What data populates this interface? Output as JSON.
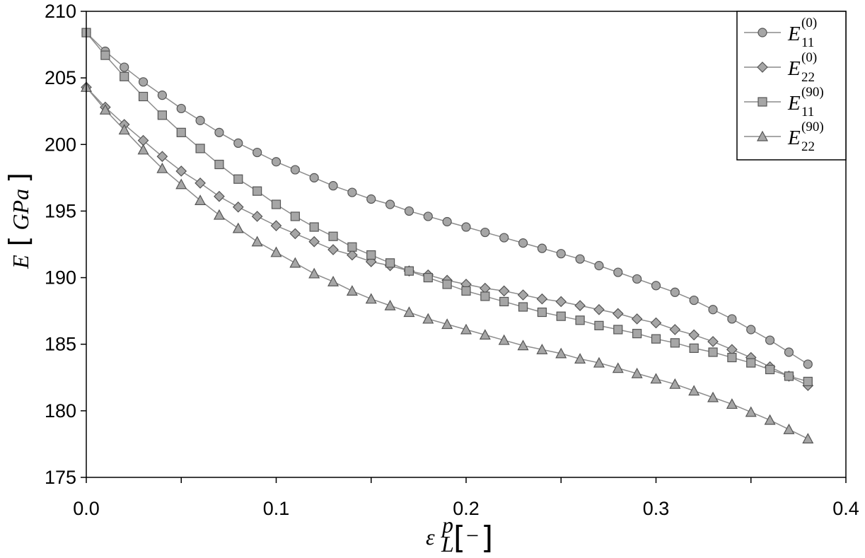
{
  "chart_data": {
    "type": "line",
    "xlabel": {
      "symbol": "ε",
      "sub": "L",
      "sup": "p",
      "unit": "−"
    },
    "ylabel": {
      "symbol": "E",
      "unit": "GPa"
    },
    "xlim": [
      0.0,
      0.4
    ],
    "ylim": [
      175,
      210
    ],
    "xticks": [
      "0.0",
      "0.1",
      "0.2",
      "0.3",
      "0.4"
    ],
    "yticks": [
      "175",
      "180",
      "185",
      "190",
      "195",
      "200",
      "205",
      "210"
    ],
    "grid": false,
    "legend_position": "top-right",
    "x": [
      0.0,
      0.01,
      0.02,
      0.03,
      0.04,
      0.05,
      0.06,
      0.07,
      0.08,
      0.09,
      0.1,
      0.11,
      0.12,
      0.13,
      0.14,
      0.15,
      0.16,
      0.17,
      0.18,
      0.19,
      0.2,
      0.21,
      0.22,
      0.23,
      0.24,
      0.25,
      0.26,
      0.27,
      0.28,
      0.29,
      0.3,
      0.31,
      0.32,
      0.33,
      0.34,
      0.35,
      0.36,
      0.37,
      0.38
    ],
    "series": [
      {
        "name": "E11(0)",
        "label": {
          "main": "E",
          "sub": "11",
          "sup": "(0)"
        },
        "marker": "circle",
        "values": [
          208.4,
          207.0,
          205.8,
          204.7,
          203.7,
          202.7,
          201.8,
          200.9,
          200.1,
          199.4,
          198.7,
          198.1,
          197.5,
          196.9,
          196.4,
          195.9,
          195.5,
          195.0,
          194.6,
          194.2,
          193.8,
          193.4,
          193.0,
          192.6,
          192.2,
          191.8,
          191.4,
          190.9,
          190.4,
          189.9,
          189.4,
          188.9,
          188.3,
          187.6,
          186.9,
          186.1,
          185.3,
          184.4,
          183.5
        ]
      },
      {
        "name": "E22(0)",
        "label": {
          "main": "E",
          "sub": "22",
          "sup": "(0)"
        },
        "marker": "diamond",
        "values": [
          204.3,
          202.8,
          201.5,
          200.3,
          199.1,
          198.0,
          197.1,
          196.1,
          195.3,
          194.6,
          193.9,
          193.3,
          192.7,
          192.1,
          191.7,
          191.2,
          190.9,
          190.5,
          190.2,
          189.8,
          189.5,
          189.2,
          189.0,
          188.7,
          188.4,
          188.2,
          187.9,
          187.6,
          187.3,
          186.9,
          186.6,
          186.1,
          185.7,
          185.2,
          184.6,
          184.0,
          183.3,
          182.6,
          181.9
        ]
      },
      {
        "name": "E11(90)",
        "label": {
          "main": "E",
          "sub": "11",
          "sup": "(90)"
        },
        "marker": "square",
        "values": [
          208.4,
          206.7,
          205.1,
          203.6,
          202.2,
          200.9,
          199.7,
          198.5,
          197.4,
          196.5,
          195.5,
          194.6,
          193.8,
          193.1,
          192.3,
          191.7,
          191.1,
          190.5,
          190.0,
          189.5,
          189.0,
          188.6,
          188.2,
          187.8,
          187.4,
          187.1,
          186.8,
          186.4,
          186.1,
          185.8,
          185.4,
          185.1,
          184.7,
          184.4,
          184.0,
          183.6,
          183.1,
          182.6,
          182.2
        ]
      },
      {
        "name": "E22(90)",
        "label": {
          "main": "E",
          "sub": "22",
          "sup": "(90)"
        },
        "marker": "triangle",
        "values": [
          204.3,
          202.6,
          201.1,
          199.6,
          198.2,
          197.0,
          195.8,
          194.7,
          193.7,
          192.7,
          191.9,
          191.1,
          190.3,
          189.7,
          189.0,
          188.4,
          187.9,
          187.4,
          186.9,
          186.5,
          186.1,
          185.7,
          185.3,
          184.9,
          184.6,
          184.3,
          183.9,
          183.6,
          183.2,
          182.8,
          182.4,
          182.0,
          181.5,
          181.0,
          180.5,
          179.9,
          179.3,
          178.6,
          177.9
        ]
      }
    ],
    "colors": {
      "line": "#8c8c8c",
      "marker_fill": "#a6a6a6",
      "marker_stroke": "#555555",
      "axis": "#000000"
    }
  }
}
